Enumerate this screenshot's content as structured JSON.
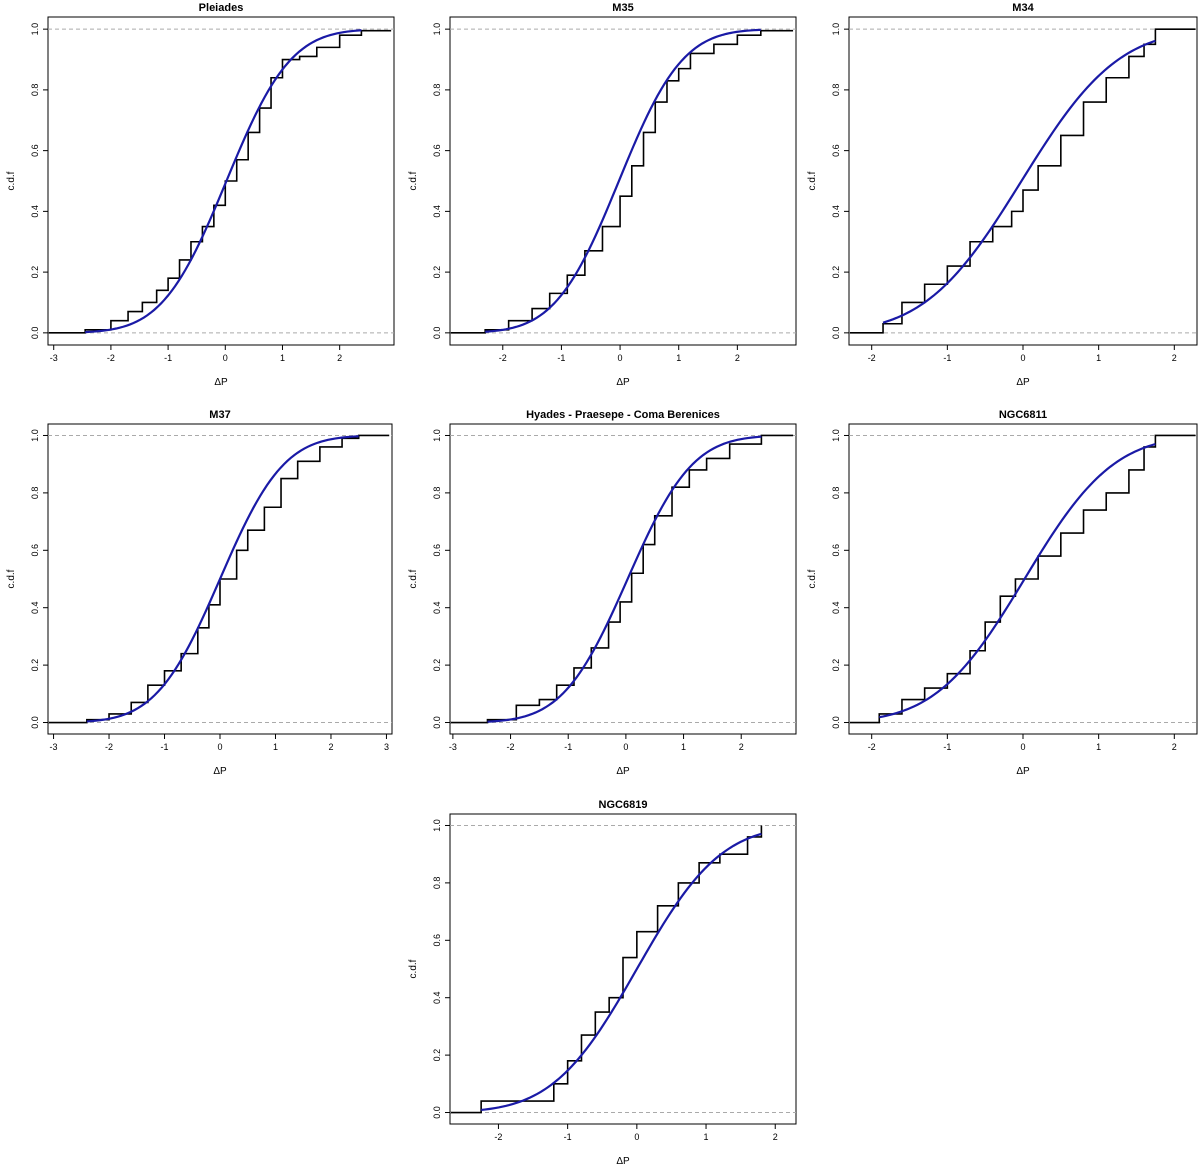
{
  "chart_data": [
    {
      "type": "line",
      "title": "Pleiades",
      "xlabel": "ΔP",
      "ylabel": "c.d.f",
      "xlim": [
        -3.1,
        2.95
      ],
      "ylim": [
        -0.04,
        1.04
      ],
      "xticks": [
        -3,
        -2,
        -1,
        0,
        1,
        2
      ],
      "yticks": [
        0.0,
        0.2,
        0.4,
        0.6,
        0.8,
        1.0
      ],
      "ytick_labels": [
        "0.0",
        "0.2",
        "0.4",
        "0.6",
        "0.8",
        "1.0"
      ],
      "fit_mean": 0.02,
      "fit_sd": 0.88,
      "fit_range": [
        -2.45,
        2.38
      ],
      "ecdf": [
        [
          -2.45,
          0.01
        ],
        [
          -2.0,
          0.04
        ],
        [
          -1.7,
          0.07
        ],
        [
          -1.45,
          0.1
        ],
        [
          -1.2,
          0.14
        ],
        [
          -1.0,
          0.18
        ],
        [
          -0.8,
          0.24
        ],
        [
          -0.6,
          0.3
        ],
        [
          -0.4,
          0.35
        ],
        [
          -0.2,
          0.42
        ],
        [
          0.0,
          0.5
        ],
        [
          0.2,
          0.57
        ],
        [
          0.4,
          0.66
        ],
        [
          0.6,
          0.74
        ],
        [
          0.8,
          0.84
        ],
        [
          1.0,
          0.9
        ],
        [
          1.3,
          0.91
        ],
        [
          1.6,
          0.94
        ],
        [
          2.0,
          0.98
        ],
        [
          2.38,
          0.995
        ]
      ],
      "x_end": 2.9
    },
    {
      "type": "line",
      "title": "M35",
      "xlabel": "ΔP",
      "ylabel": "c.d.f",
      "xlim": [
        -2.9,
        3.0
      ],
      "ylim": [
        -0.04,
        1.04
      ],
      "xticks": [
        -2,
        -1,
        0,
        1,
        2
      ],
      "yticks": [
        0.0,
        0.2,
        0.4,
        0.6,
        0.8,
        1.0
      ],
      "ytick_labels": [
        "0.0",
        "0.2",
        "0.4",
        "0.6",
        "0.8",
        "1.0"
      ],
      "fit_mean": -0.02,
      "fit_sd": 0.85,
      "fit_range": [
        -2.3,
        2.4
      ],
      "ecdf": [
        [
          -2.3,
          0.01
        ],
        [
          -1.9,
          0.04
        ],
        [
          -1.5,
          0.08
        ],
        [
          -1.2,
          0.13
        ],
        [
          -0.9,
          0.19
        ],
        [
          -0.6,
          0.27
        ],
        [
          -0.3,
          0.35
        ],
        [
          0.0,
          0.45
        ],
        [
          0.2,
          0.55
        ],
        [
          0.4,
          0.66
        ],
        [
          0.6,
          0.76
        ],
        [
          0.8,
          0.83
        ],
        [
          1.0,
          0.87
        ],
        [
          1.2,
          0.92
        ],
        [
          1.6,
          0.95
        ],
        [
          2.0,
          0.98
        ],
        [
          2.4,
          0.995
        ]
      ],
      "x_end": 2.95
    },
    {
      "type": "line",
      "title": "M34",
      "xlabel": "ΔP",
      "ylabel": "c.d.f",
      "xlim": [
        -2.3,
        2.3
      ],
      "ylim": [
        -0.04,
        1.04
      ],
      "xticks": [
        -2,
        -1,
        0,
        1,
        2
      ],
      "yticks": [
        0.0,
        0.2,
        0.4,
        0.6,
        0.8,
        1.0
      ],
      "ytick_labels": [
        "0.0",
        "0.2",
        "0.4",
        "0.6",
        "0.8",
        "1.0"
      ],
      "fit_mean": -0.02,
      "fit_sd": 1.0,
      "fit_range": [
        -1.85,
        1.75
      ],
      "ecdf": [
        [
          -1.85,
          0.03
        ],
        [
          -1.6,
          0.1
        ],
        [
          -1.3,
          0.16
        ],
        [
          -1.0,
          0.22
        ],
        [
          -0.7,
          0.3
        ],
        [
          -0.4,
          0.35
        ],
        [
          -0.15,
          0.4
        ],
        [
          0.0,
          0.47
        ],
        [
          0.2,
          0.55
        ],
        [
          0.5,
          0.65
        ],
        [
          0.8,
          0.76
        ],
        [
          1.1,
          0.84
        ],
        [
          1.4,
          0.91
        ],
        [
          1.6,
          0.95
        ],
        [
          1.75,
          1.0
        ]
      ],
      "x_end": 2.28
    },
    {
      "type": "line",
      "title": "M37",
      "xlabel": "ΔP",
      "ylabel": "c.d.f",
      "xlim": [
        -3.1,
        3.1
      ],
      "ylim": [
        -0.04,
        1.04
      ],
      "xticks": [
        -3,
        -2,
        -1,
        0,
        1,
        2,
        3
      ],
      "yticks": [
        0.0,
        0.2,
        0.4,
        0.6,
        0.8,
        1.0
      ],
      "ytick_labels": [
        "0.0",
        "0.2",
        "0.4",
        "0.6",
        "0.8",
        "1.0"
      ],
      "fit_mean": 0.0,
      "fit_sd": 0.9,
      "fit_range": [
        -2.4,
        2.5
      ],
      "ecdf": [
        [
          -2.4,
          0.01
        ],
        [
          -2.0,
          0.03
        ],
        [
          -1.6,
          0.07
        ],
        [
          -1.3,
          0.13
        ],
        [
          -1.0,
          0.18
        ],
        [
          -0.7,
          0.24
        ],
        [
          -0.4,
          0.33
        ],
        [
          -0.2,
          0.41
        ],
        [
          0.0,
          0.5
        ],
        [
          0.3,
          0.6
        ],
        [
          0.5,
          0.67
        ],
        [
          0.8,
          0.75
        ],
        [
          1.1,
          0.85
        ],
        [
          1.4,
          0.91
        ],
        [
          1.8,
          0.96
        ],
        [
          2.2,
          0.99
        ],
        [
          2.5,
          1.0
        ]
      ],
      "x_end": 3.05
    },
    {
      "type": "line",
      "title": "Hyades - Praesepe - Coma Berenices",
      "xlabel": "ΔP",
      "ylabel": "c.d.f",
      "xlim": [
        -3.05,
        2.95
      ],
      "ylim": [
        -0.04,
        1.04
      ],
      "xticks": [
        -3,
        -2,
        -1,
        0,
        1,
        2
      ],
      "yticks": [
        0.0,
        0.2,
        0.4,
        0.6,
        0.8,
        1.0
      ],
      "ytick_labels": [
        "0.0",
        "0.2",
        "0.4",
        "0.6",
        "0.8",
        "1.0"
      ],
      "fit_mean": 0.03,
      "fit_sd": 0.88,
      "fit_range": [
        -2.4,
        2.35
      ],
      "ecdf": [
        [
          -2.4,
          0.01
        ],
        [
          -1.9,
          0.06
        ],
        [
          -1.5,
          0.08
        ],
        [
          -1.2,
          0.13
        ],
        [
          -0.9,
          0.19
        ],
        [
          -0.6,
          0.26
        ],
        [
          -0.3,
          0.35
        ],
        [
          -0.1,
          0.42
        ],
        [
          0.1,
          0.52
        ],
        [
          0.3,
          0.62
        ],
        [
          0.5,
          0.72
        ],
        [
          0.8,
          0.82
        ],
        [
          1.1,
          0.88
        ],
        [
          1.4,
          0.92
        ],
        [
          1.8,
          0.97
        ],
        [
          2.35,
          1.0
        ]
      ],
      "x_end": 2.9
    },
    {
      "type": "line",
      "title": "NGC6811",
      "xlabel": "ΔP",
      "ylabel": "c.d.f",
      "xlim": [
        -2.3,
        2.3
      ],
      "ylim": [
        -0.04,
        1.04
      ],
      "xticks": [
        -2,
        -1,
        0,
        1,
        2
      ],
      "yticks": [
        0.0,
        0.2,
        0.4,
        0.6,
        0.8,
        1.0
      ],
      "ytick_labels": [
        "0.0",
        "0.2",
        "0.4",
        "0.6",
        "0.8",
        "1.0"
      ],
      "fit_mean": 0.02,
      "fit_sd": 0.92,
      "fit_range": [
        -1.9,
        1.75
      ],
      "ecdf": [
        [
          -1.9,
          0.03
        ],
        [
          -1.6,
          0.08
        ],
        [
          -1.3,
          0.12
        ],
        [
          -1.0,
          0.17
        ],
        [
          -0.7,
          0.25
        ],
        [
          -0.5,
          0.35
        ],
        [
          -0.3,
          0.44
        ],
        [
          -0.1,
          0.5
        ],
        [
          0.2,
          0.58
        ],
        [
          0.5,
          0.66
        ],
        [
          0.8,
          0.74
        ],
        [
          1.1,
          0.8
        ],
        [
          1.4,
          0.88
        ],
        [
          1.6,
          0.96
        ],
        [
          1.75,
          1.0
        ]
      ],
      "x_end": 2.28
    },
    {
      "type": "line",
      "title": "NGC6819",
      "xlabel": "ΔP",
      "ylabel": "c.d.f",
      "xlim": [
        -2.7,
        2.3
      ],
      "ylim": [
        -0.04,
        1.04
      ],
      "xticks": [
        -2,
        -1,
        0,
        1,
        2
      ],
      "yticks": [
        0.0,
        0.2,
        0.4,
        0.6,
        0.8,
        1.0
      ],
      "ytick_labels": [
        "0.0",
        "0.2",
        "0.4",
        "0.6",
        "0.8",
        "1.0"
      ],
      "fit_mean": 0.0,
      "fit_sd": 0.95,
      "fit_range": [
        -2.25,
        1.8
      ],
      "ecdf": [
        [
          -2.25,
          0.04
        ],
        [
          -1.2,
          0.1
        ],
        [
          -1.0,
          0.18
        ],
        [
          -0.8,
          0.27
        ],
        [
          -0.6,
          0.35
        ],
        [
          -0.4,
          0.4
        ],
        [
          -0.2,
          0.54
        ],
        [
          0.0,
          0.63
        ],
        [
          0.3,
          0.72
        ],
        [
          0.6,
          0.8
        ],
        [
          0.9,
          0.87
        ],
        [
          1.2,
          0.9
        ],
        [
          1.6,
          0.96
        ],
        [
          1.8,
          1.0
        ]
      ],
      "x_end": null
    }
  ],
  "colors": {
    "fit_line": "#1a1aa6",
    "ecdf_line": "#000000",
    "reference_line": "#aaaaaa"
  }
}
